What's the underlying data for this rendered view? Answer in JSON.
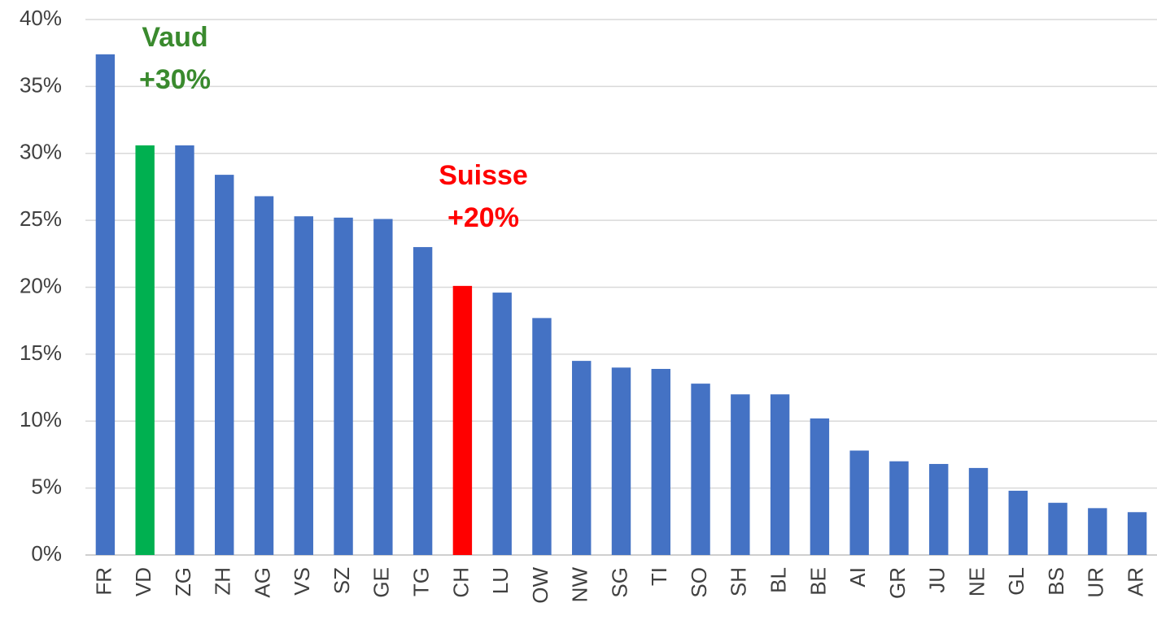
{
  "chart_data": {
    "type": "bar",
    "categories": [
      "FR",
      "VD",
      "ZG",
      "ZH",
      "AG",
      "VS",
      "SZ",
      "GE",
      "TG",
      "CH",
      "LU",
      "OW",
      "NW",
      "SG",
      "TI",
      "SO",
      "SH",
      "BL",
      "BE",
      "AI",
      "GR",
      "JU",
      "NE",
      "GL",
      "BS",
      "UR",
      "AR"
    ],
    "values": [
      37.4,
      30.6,
      30.6,
      28.4,
      26.8,
      25.3,
      25.2,
      25.1,
      23.0,
      20.1,
      19.6,
      17.7,
      14.5,
      14.0,
      13.9,
      12.8,
      12.0,
      12.0,
      10.2,
      7.8,
      7.0,
      6.8,
      6.5,
      4.8,
      3.9,
      3.5,
      3.2
    ],
    "colors": [
      "#4472c4",
      "#00b050",
      "#4472c4",
      "#4472c4",
      "#4472c4",
      "#4472c4",
      "#4472c4",
      "#4472c4",
      "#4472c4",
      "#ff0000",
      "#4472c4",
      "#4472c4",
      "#4472c4",
      "#4472c4",
      "#4472c4",
      "#4472c4",
      "#4472c4",
      "#4472c4",
      "#4472c4",
      "#4472c4",
      "#4472c4",
      "#4472c4",
      "#4472c4",
      "#4472c4",
      "#4472c4",
      "#4472c4",
      "#4472c4"
    ],
    "ylim": [
      0,
      40
    ],
    "yticks": [
      {
        "value": 0,
        "label": "0%"
      },
      {
        "value": 5,
        "label": "5%"
      },
      {
        "value": 10,
        "label": "10%"
      },
      {
        "value": 15,
        "label": "15%"
      },
      {
        "value": 20,
        "label": "20%"
      },
      {
        "value": 25,
        "label": "25%"
      },
      {
        "value": 30,
        "label": "30%"
      },
      {
        "value": 35,
        "label": "35%"
      },
      {
        "value": 40,
        "label": "40%"
      }
    ],
    "grid": true,
    "annotations": [
      {
        "text": [
          "Vaud",
          "+30%"
        ],
        "color": "#3a8a2e"
      },
      {
        "text": [
          "Suisse",
          "+20%"
        ],
        "color": "#ff0000"
      }
    ]
  }
}
